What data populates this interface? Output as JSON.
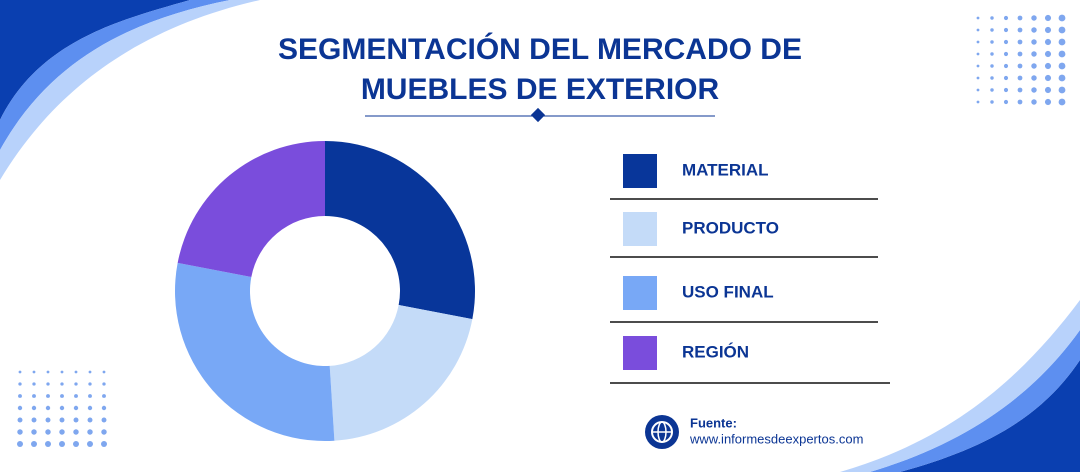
{
  "chart_data": {
    "type": "donut",
    "title": "SEGMENTACIÓN DEL MERCADO DE MUEBLES DE EXTERIOR",
    "categories": [
      "MATERIAL",
      "PRODUCTO",
      "USO FINAL",
      "REGIÓN"
    ],
    "values": [
      28,
      21,
      29,
      22
    ],
    "colors": [
      "#08369a",
      "#c4dbf8",
      "#78a8f6",
      "#7a4ddc"
    ],
    "legend": "right"
  },
  "source": {
    "label": "Fuente:",
    "url": "www.informesdeexpertos.com"
  }
}
